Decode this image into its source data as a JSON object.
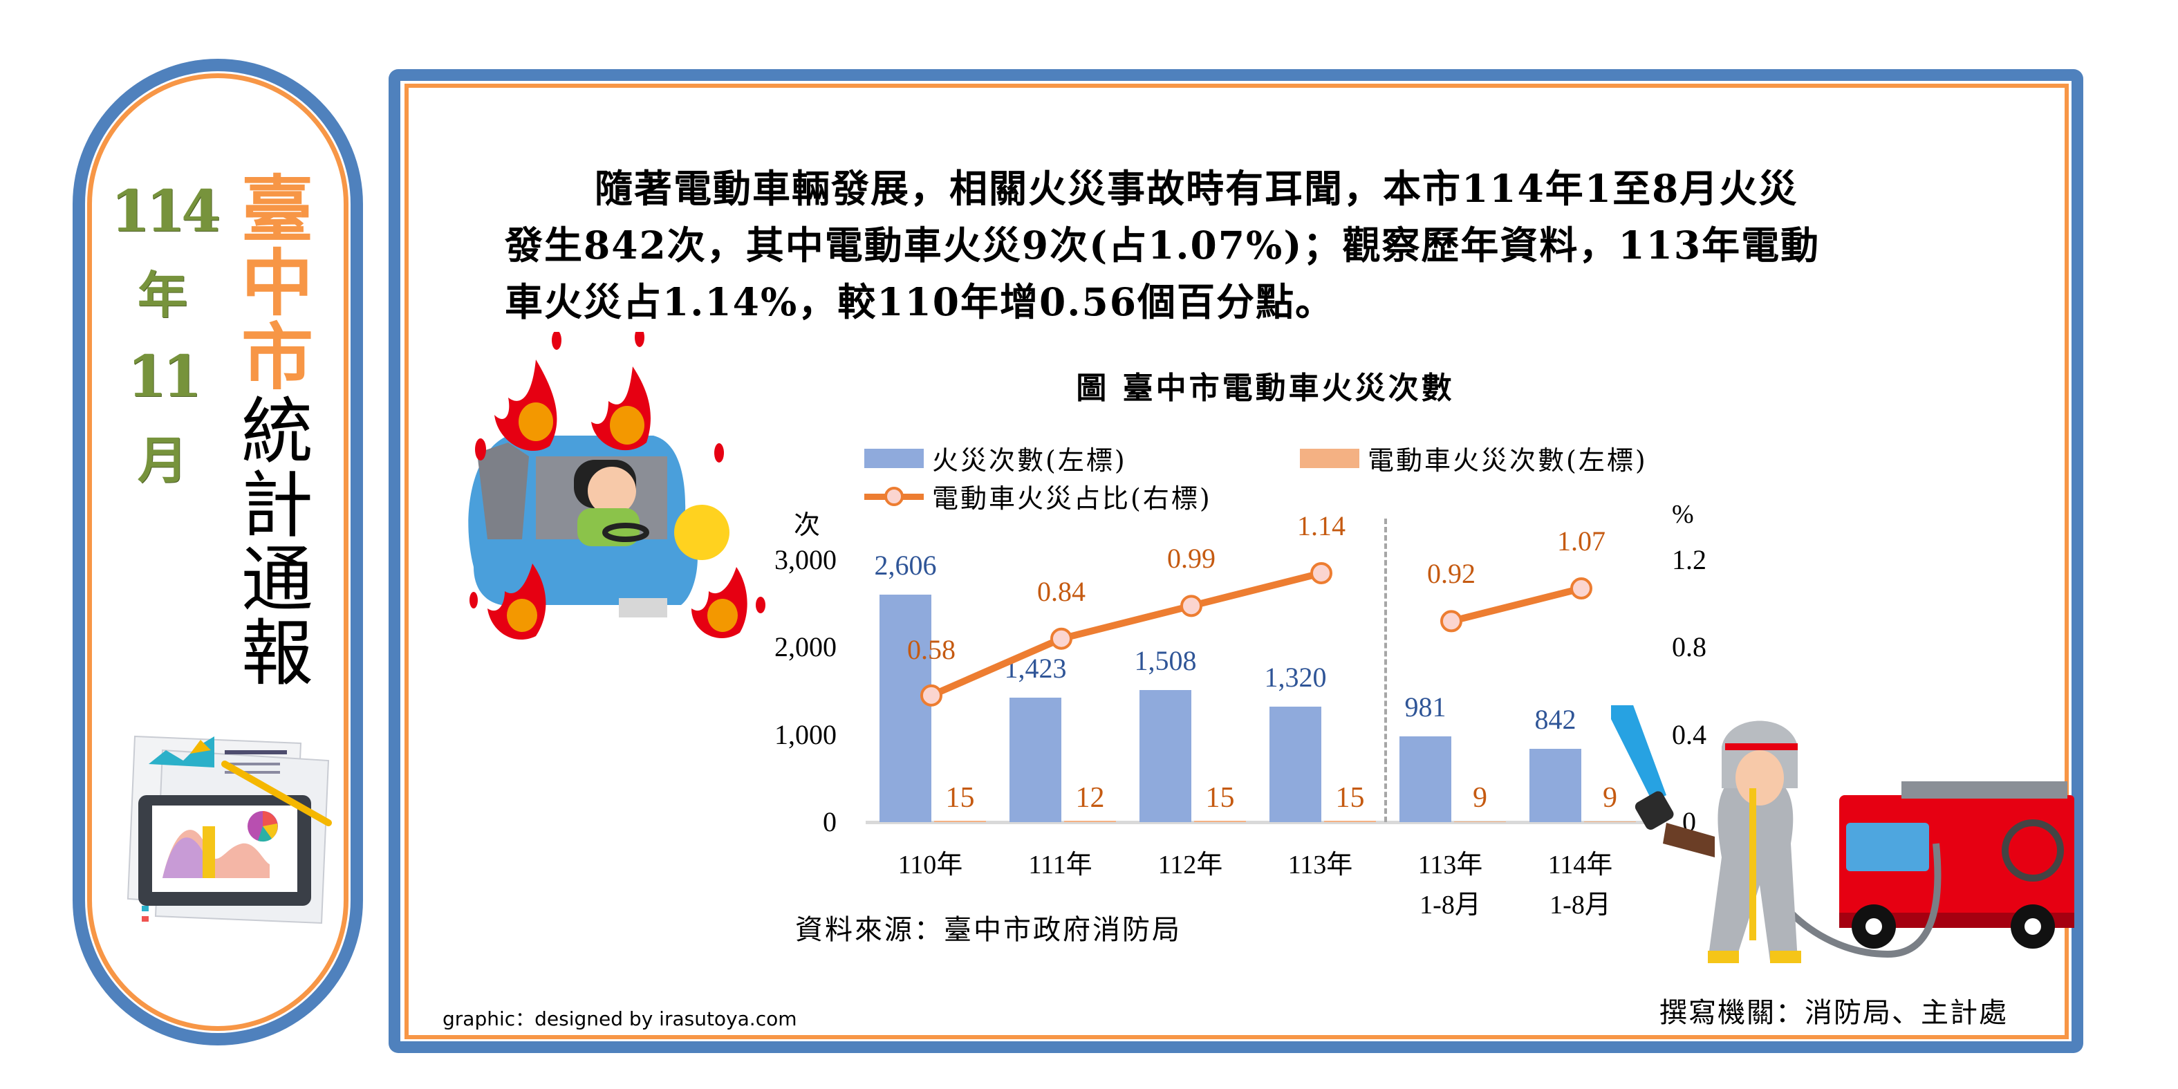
{
  "sidebar": {
    "date": {
      "year_num": "114",
      "year_char": "年",
      "month_num": "11",
      "month_char": "月"
    },
    "title_chars_orange": [
      "臺",
      "中",
      "市"
    ],
    "title_chars_black": [
      "統",
      "計",
      "通",
      "報"
    ],
    "illustration": "tablet-with-charts-icon"
  },
  "main": {
    "paragraph_lines": [
      "隨著電動車輛發展，相關火災事故時有耳聞，本市114年1至8月火災",
      "發生842次，其中電動車火災9次(占1.07%)；觀察歷年資料，113年電動",
      "車火災占1.14%，較110年增0.56個百分點。"
    ],
    "illustrations": [
      "burning-car-icon",
      "firefighter-icon",
      "fire-truck-icon"
    ],
    "source": "資料來源：臺中市政府消防局",
    "credit": "graphic：designed by irasutoya.com",
    "author": "撰寫機關：消防局、主計處"
  },
  "colors": {
    "frame_blue": "#4f81bd",
    "frame_orange": "#f79646",
    "bar_fire": "#8faadc",
    "bar_ev": "#f4b183",
    "line_ev_pct": "#ed7d31",
    "marker_fill": "#fbd5d0",
    "label_blue": "#2f5597",
    "label_orange": "#c55a11",
    "date_green": "#77933c"
  },
  "chart_data": {
    "type": "bar+line",
    "title": "圖 臺中市電動車火災次數",
    "categories": [
      "110年",
      "111年",
      "112年",
      "113年",
      "113年 1-8月",
      "114年 1-8月"
    ],
    "category_lines": [
      [
        "110年",
        ""
      ],
      [
        "111年",
        ""
      ],
      [
        "112年",
        ""
      ],
      [
        "113年",
        ""
      ],
      [
        "113年",
        "1-8月"
      ],
      [
        "114年",
        "1-8月"
      ]
    ],
    "series": [
      {
        "name": "火災次數(左標)",
        "type": "bar",
        "axis": "left",
        "values": [
          2606,
          1423,
          1508,
          1320,
          981,
          842
        ],
        "labels": [
          "2,606",
          "1,423",
          "1,508",
          "1,320",
          "981",
          "842"
        ]
      },
      {
        "name": "電動車火災次數(左標)",
        "type": "bar",
        "axis": "left",
        "values": [
          15,
          12,
          15,
          15,
          9,
          9
        ],
        "labels": [
          "15",
          "12",
          "15",
          "15",
          "9",
          "9"
        ]
      },
      {
        "name": "電動車火災占比(右標)",
        "type": "line",
        "axis": "right",
        "values": [
          0.58,
          0.84,
          0.99,
          1.14,
          0.92,
          1.07
        ],
        "labels": [
          "0.58",
          "0.84",
          "0.99",
          "1.14",
          "0.92",
          "1.07"
        ],
        "segments": [
          [
            0,
            3
          ],
          [
            4,
            5
          ]
        ]
      }
    ],
    "left_axis": {
      "label": "次",
      "ticks": [
        "0",
        "1,000",
        "2,000",
        "3,000"
      ],
      "range": [
        0,
        3000
      ]
    },
    "right_axis": {
      "label": "%",
      "ticks": [
        "0",
        "0.4",
        "0.8",
        "1.2"
      ],
      "range": [
        0,
        1.2
      ]
    },
    "divider_after_index": 3,
    "legend_position": "top",
    "grid": false
  }
}
